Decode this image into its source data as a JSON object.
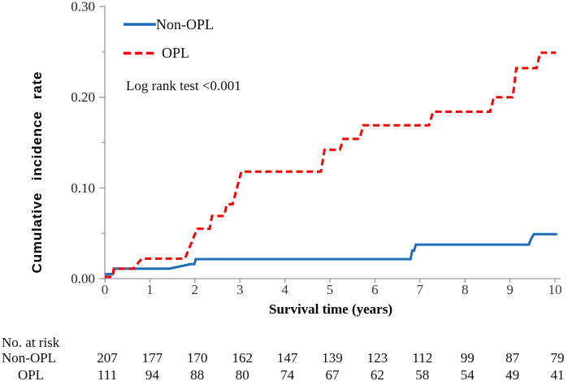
{
  "figure": {
    "y_axis_title": "Cumulative incidence rate",
    "x_axis_title": "Survival time (years)",
    "annotation": "Log rank test <0.001"
  },
  "chart_data": {
    "type": "line",
    "subtype": "cumulative-incidence-step-curves",
    "title": "",
    "xlabel": "Survival time (years)",
    "ylabel": "Cumulative incidence rate",
    "annotation": "Log rank test <0.001",
    "xlim": [
      0,
      10
    ],
    "ylim": [
      0,
      0.3
    ],
    "x_ticks": [
      0,
      1,
      2,
      3,
      4,
      5,
      6,
      7,
      8,
      9,
      10
    ],
    "y_ticks": [
      0,
      0.1,
      0.2,
      0.3
    ],
    "y_tick_labels": [
      "0.00",
      "0.10",
      "0.20",
      "0.30"
    ],
    "y_minor_ticks": [
      0.05,
      0.15,
      0.25
    ],
    "grid": false,
    "legend_position": "top-left-inside",
    "axis_color": "#9c9c9c",
    "series": [
      {
        "name": "Non-OPL",
        "color": "#1e6fb8",
        "style": "solid",
        "step_points": [
          [
            0,
            0.005
          ],
          [
            0.18,
            0.005
          ],
          [
            0.21,
            0.011
          ],
          [
            1.43,
            0.011
          ],
          [
            1.91,
            0.016
          ],
          [
            1.99,
            0.016
          ],
          [
            2.02,
            0.0215
          ],
          [
            6.79,
            0.0215
          ],
          [
            6.83,
            0.031
          ],
          [
            6.87,
            0.031
          ],
          [
            6.91,
            0.0375
          ],
          [
            9.42,
            0.0375
          ],
          [
            9.46,
            0.043
          ],
          [
            9.53,
            0.049
          ],
          [
            10.05,
            0.049
          ]
        ]
      },
      {
        "name": "OPL",
        "color": "#fb0000",
        "style": "dashed",
        "step_points": [
          [
            0,
            0.002
          ],
          [
            0.17,
            0.002
          ],
          [
            0.2,
            0.011
          ],
          [
            0.63,
            0.011
          ],
          [
            0.82,
            0.022
          ],
          [
            1.78,
            0.022
          ],
          [
            2.05,
            0.055
          ],
          [
            2.33,
            0.055
          ],
          [
            2.38,
            0.069
          ],
          [
            2.65,
            0.069
          ],
          [
            2.71,
            0.082
          ],
          [
            2.84,
            0.082
          ],
          [
            3.03,
            0.118
          ],
          [
            4.8,
            0.118
          ],
          [
            4.88,
            0.142
          ],
          [
            5.22,
            0.142
          ],
          [
            5.3,
            0.154
          ],
          [
            5.66,
            0.154
          ],
          [
            5.74,
            0.169
          ],
          [
            7.2,
            0.169
          ],
          [
            7.29,
            0.184
          ],
          [
            8.56,
            0.184
          ],
          [
            8.64,
            0.2
          ],
          [
            9.06,
            0.2
          ],
          [
            9.14,
            0.232
          ],
          [
            9.59,
            0.232
          ],
          [
            9.67,
            0.249
          ],
          [
            10.02,
            0.249
          ]
        ]
      }
    ],
    "risk_table": {
      "header": "No. at risk",
      "time_points": [
        0,
        1,
        2,
        3,
        4,
        5,
        6,
        7,
        8,
        9,
        10
      ],
      "rows": [
        {
          "label": "Non-OPL",
          "values": [
            207,
            177,
            170,
            162,
            147,
            139,
            123,
            112,
            99,
            87,
            79
          ]
        },
        {
          "label": "OPL",
          "values": [
            111,
            94,
            88,
            80,
            74,
            67,
            62,
            58,
            54,
            49,
            41
          ]
        }
      ]
    }
  }
}
